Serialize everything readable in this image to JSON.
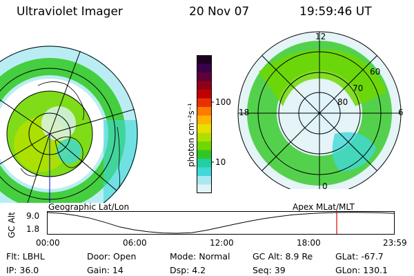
{
  "header": {
    "instrument": "Ultraviolet Imager",
    "date": "20 Nov 07",
    "time": "19:59:46 UT"
  },
  "colorbar": {
    "unit_label": "photon cm⁻²s⁻¹",
    "ticks": [
      "100",
      "10"
    ],
    "colors": [
      "#200020",
      "#3a0048",
      "#60003a",
      "#900018",
      "#c00000",
      "#e83000",
      "#ff7a00",
      "#ffb400",
      "#e8e000",
      "#b0e000",
      "#70d800",
      "#30c820",
      "#20d0a0",
      "#40d8d8",
      "#a8e8f0",
      "#e0f4f8"
    ]
  },
  "maps": {
    "left_title": "Geographic Lat/Lon",
    "right_title": "Apex  MLat/MLT",
    "mlt_labels": [
      "12",
      "18",
      "6",
      "0"
    ],
    "mlat_labels": [
      "60",
      "70",
      "80"
    ]
  },
  "altitude_plot": {
    "ylabel": "GC Alt",
    "y_ticks": [
      "9.0",
      "1.8"
    ],
    "x_ticks": [
      "00:00",
      "06:00",
      "12:00",
      "18:00",
      "23:59"
    ],
    "curve": [
      [
        0,
        9.0
      ],
      [
        1,
        8.7
      ],
      [
        2,
        8.0
      ],
      [
        3,
        7.0
      ],
      [
        4,
        5.6
      ],
      [
        5,
        4.0
      ],
      [
        6,
        3.0
      ],
      [
        7,
        2.3
      ],
      [
        8,
        1.9
      ],
      [
        9,
        1.8
      ],
      [
        10,
        2.0
      ],
      [
        11,
        2.8
      ],
      [
        12,
        3.9
      ],
      [
        13,
        5.0
      ],
      [
        14,
        6.0
      ],
      [
        15,
        6.9
      ],
      [
        16,
        7.6
      ],
      [
        17,
        8.2
      ],
      [
        18,
        8.6
      ],
      [
        19,
        8.85
      ],
      [
        20,
        9.0
      ],
      [
        21,
        9.05
      ],
      [
        22,
        9.0
      ],
      [
        23,
        8.9
      ],
      [
        24,
        8.7
      ]
    ],
    "current_time_marker": "20:00",
    "marker_color": "#dd0000"
  },
  "info": {
    "filter": "Flt: LBHL",
    "door": "Door: Open",
    "mode": "Mode: Normal",
    "gc_alt": "GC Alt: 8.9 Re",
    "glat": "GLat: -67.7",
    "ip": "IP: 36.0",
    "gain": "Gain: 14",
    "dsp": "Dsp:     4.2",
    "seq": "Seq: 39",
    "glon": "GLon: 130.1"
  }
}
